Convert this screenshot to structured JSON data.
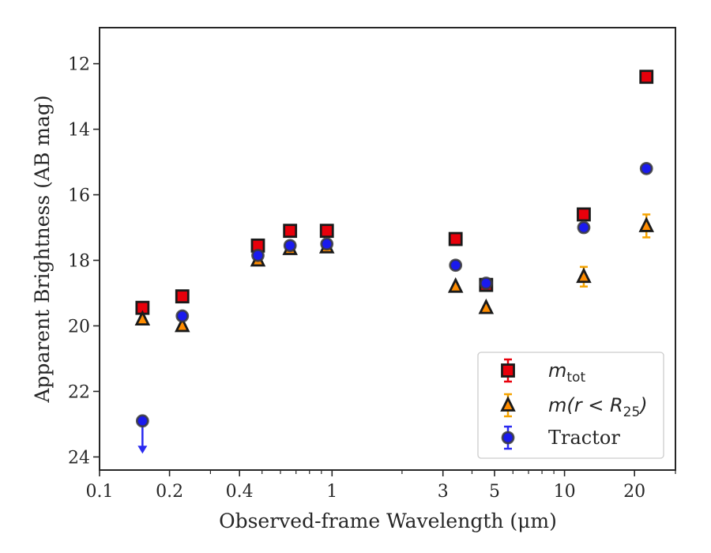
{
  "chart_data": {
    "type": "scatter",
    "xlabel": "Observed-frame Wavelength (μm)",
    "ylabel": "Apparent Brightness (AB mag)",
    "xscale": "log",
    "xlim": [
      0.1,
      30
    ],
    "ylim": [
      24.4,
      10.9
    ],
    "y_inverted": true,
    "grid": false,
    "legend_position": "lower-right",
    "x_ticks": [
      {
        "value": 0.1,
        "label": "0.1"
      },
      {
        "value": 0.2,
        "label": "0.2"
      },
      {
        "value": 0.4,
        "label": "0.4"
      },
      {
        "value": 1,
        "label": "1"
      },
      {
        "value": 3,
        "label": "3"
      },
      {
        "value": 5,
        "label": "5"
      },
      {
        "value": 10,
        "label": "10"
      },
      {
        "value": 20,
        "label": "20"
      }
    ],
    "y_ticks": [
      {
        "value": 12,
        "label": "12"
      },
      {
        "value": 14,
        "label": "14"
      },
      {
        "value": 16,
        "label": "16"
      },
      {
        "value": 18,
        "label": "18"
      },
      {
        "value": 20,
        "label": "20"
      },
      {
        "value": 22,
        "label": "22"
      },
      {
        "value": 24,
        "label": "24"
      }
    ],
    "series": [
      {
        "name": "m_tot",
        "legend_main": "m",
        "legend_sub": "tot",
        "marker": "square",
        "face_color": "#e8000b",
        "edge_color": "#1a1a1a",
        "error_color": "#e8000b",
        "points": [
          {
            "x": 0.153,
            "y": 19.45,
            "err": 0
          },
          {
            "x": 0.227,
            "y": 19.1,
            "err": 0
          },
          {
            "x": 0.48,
            "y": 17.55,
            "err": 0
          },
          {
            "x": 0.66,
            "y": 17.1,
            "err": 0
          },
          {
            "x": 0.95,
            "y": 17.1,
            "err": 0
          },
          {
            "x": 3.4,
            "y": 17.35,
            "err": 0
          },
          {
            "x": 4.6,
            "y": 18.75,
            "err": 0
          },
          {
            "x": 12.1,
            "y": 16.6,
            "err": 0
          },
          {
            "x": 22.5,
            "y": 12.4,
            "err": 0
          }
        ]
      },
      {
        "name": "m(r < R25)",
        "legend_main": "m(r < R",
        "legend_sub": "25",
        "legend_close": ")",
        "marker": "triangle",
        "face_color": "#ff8c00",
        "edge_color": "#1a1a1a",
        "error_color": "#f5a300",
        "points": [
          {
            "x": 0.153,
            "y": 19.8,
            "err": 0
          },
          {
            "x": 0.227,
            "y": 20.0,
            "err": 0
          },
          {
            "x": 0.48,
            "y": 18.0,
            "err": 0
          },
          {
            "x": 0.66,
            "y": 17.65,
            "err": 0
          },
          {
            "x": 0.95,
            "y": 17.6,
            "err": 0
          },
          {
            "x": 3.4,
            "y": 18.8,
            "err": 0
          },
          {
            "x": 4.6,
            "y": 19.45,
            "err": 0
          },
          {
            "x": 12.1,
            "y": 18.5,
            "err": 0.3
          },
          {
            "x": 22.5,
            "y": 16.95,
            "err": 0.35
          }
        ]
      },
      {
        "name": "Tractor",
        "legend_main": "Tractor",
        "marker": "circle",
        "face_color": "#1a1aee",
        "edge_color": "#3a3a3a",
        "error_color": "#2a2af0",
        "points": [
          {
            "x": 0.153,
            "y": 22.9,
            "err": 0,
            "upper_limit": true,
            "limit_to": 23.9
          },
          {
            "x": 0.227,
            "y": 19.7,
            "err": 0
          },
          {
            "x": 0.48,
            "y": 17.85,
            "err": 0
          },
          {
            "x": 0.66,
            "y": 17.55,
            "err": 0
          },
          {
            "x": 0.95,
            "y": 17.5,
            "err": 0
          },
          {
            "x": 3.4,
            "y": 18.15,
            "err": 0
          },
          {
            "x": 4.6,
            "y": 18.7,
            "err": 0
          },
          {
            "x": 12.1,
            "y": 17.0,
            "err": 0
          },
          {
            "x": 22.5,
            "y": 15.2,
            "err": 0
          }
        ]
      }
    ]
  }
}
